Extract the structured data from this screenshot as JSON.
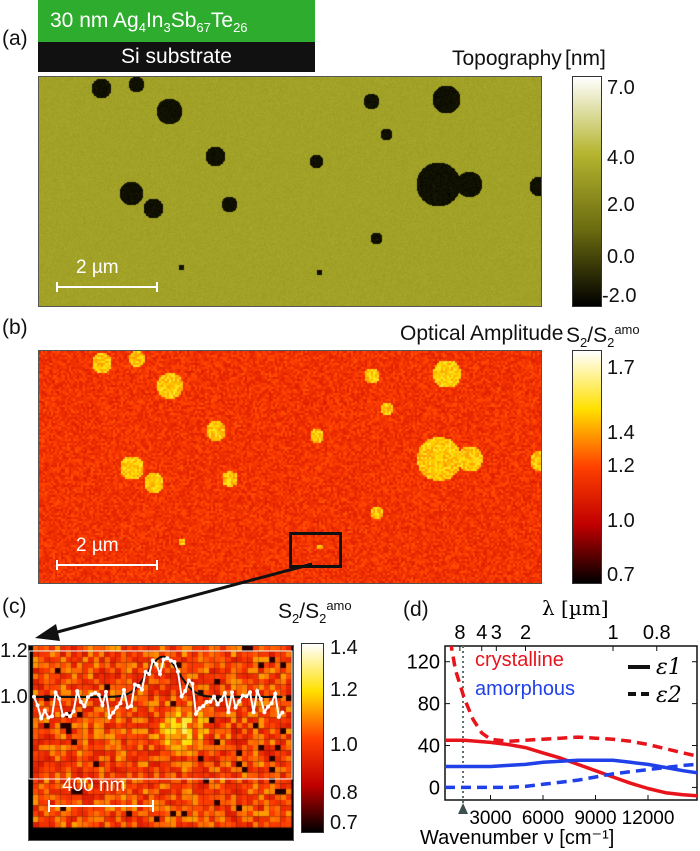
{
  "header": {
    "film_layer": {
      "prefix": "30 nm Ag",
      "s1": "4",
      "e2": "In",
      "s2": "3",
      "e3": "Sb",
      "s3": "67",
      "e4": "Te",
      "s4": "26",
      "color": "#2eac2e"
    },
    "substrate_layer": {
      "label": "Si substrate",
      "color": "#111111"
    }
  },
  "panel_a": {
    "label": "(a)",
    "title": "Topography",
    "unit": "[nm]",
    "scale_bar": "2 µm",
    "colorbar_ticks": [
      "7.0",
      "4.0",
      "2.0",
      "0.0",
      "-2.0"
    ],
    "colormap": [
      "#000000",
      "#6b6b10",
      "#b5b530",
      "#ffffff"
    ]
  },
  "panel_b": {
    "label": "(b)",
    "title": "Optical Amplitude",
    "unit_main": "S",
    "unit_sub": "2",
    "unit_slash": "/S",
    "unit_sub2": "2",
    "unit_sup": "amo",
    "scale_bar": "2 µm",
    "colorbar_ticks": [
      "1.7",
      "1.4",
      "1.2",
      "1.0",
      "0.7"
    ],
    "colormap": [
      "#000000",
      "#c00000",
      "#ff4000",
      "#ffe000",
      "#ffffff"
    ]
  },
  "panel_c": {
    "label": "(c)",
    "unit_main": "S",
    "unit_sub": "2",
    "unit_slash": "/S",
    "unit_sub2": "2",
    "unit_sup": "amo",
    "scale_bar": "400 nm",
    "profile_ticks": [
      "1.2",
      "1.0"
    ],
    "colorbar_ticks": [
      "1.4",
      "1.2",
      "1.0",
      "0.8",
      "0.7"
    ]
  },
  "chart_data": {
    "type": "line",
    "panel_label": "(d)",
    "xlabel": "Wavenumber ν [cm⁻¹]",
    "top_axis_label": "λ [µm]",
    "top_axis_ticks": [
      {
        "label": "8",
        "wavenumber": 1250
      },
      {
        "label": "4",
        "wavenumber": 2500
      },
      {
        "label": "3",
        "wavenumber": 3333
      },
      {
        "label": "2",
        "wavenumber": 5000
      },
      {
        "label": "1",
        "wavenumber": 10000
      },
      {
        "label": "0.8",
        "wavenumber": 12500
      }
    ],
    "xlim": [
      400,
      14800
    ],
    "ylim": [
      -12,
      135
    ],
    "xticks": [
      "3000",
      "6000",
      "9000",
      "12000"
    ],
    "yticks": [
      "0",
      "40",
      "80",
      "120"
    ],
    "marker_wavenumber": 1430,
    "legend": {
      "materials": [
        {
          "name": "crystalline",
          "color": "#e8141c"
        },
        {
          "name": "amorphous",
          "color": "#2040e8"
        }
      ],
      "styles": [
        {
          "name": "ε1",
          "dash": "solid"
        },
        {
          "name": "ε2",
          "dash": "dashed"
        }
      ]
    },
    "series": [
      {
        "material": "crystalline",
        "component": "ε1",
        "color": "#e8141c",
        "dash": "solid",
        "x": [
          400,
          1500,
          3000,
          4000,
          5000,
          6000,
          7000,
          8000,
          9000,
          10000,
          11000,
          12000,
          13000,
          14000,
          14800
        ],
        "y": [
          45,
          45,
          43,
          41,
          38,
          33,
          28,
          22,
          16,
          10,
          4,
          -1,
          -5,
          -7,
          -8
        ]
      },
      {
        "material": "crystalline",
        "component": "ε2",
        "color": "#e8141c",
        "dash": "dashed",
        "x": [
          700,
          1000,
          1500,
          2000,
          2500,
          3000,
          4000,
          5000,
          6000,
          7000,
          8000,
          9000,
          10000,
          11000,
          12000,
          13000,
          14000,
          14800
        ],
        "y": [
          140,
          112,
          85,
          65,
          52,
          46,
          44,
          45,
          46,
          47,
          48,
          47,
          46,
          44,
          41,
          37,
          33,
          30
        ]
      },
      {
        "material": "amorphous",
        "component": "ε1",
        "color": "#2040e8",
        "dash": "solid",
        "x": [
          400,
          2000,
          3000,
          4000,
          5000,
          6000,
          7000,
          8000,
          9000,
          10000,
          11000,
          12000,
          13000,
          14000,
          14800
        ],
        "y": [
          20,
          20,
          20,
          21,
          22,
          24,
          25,
          26,
          26,
          26,
          24,
          22,
          19,
          16,
          14
        ]
      },
      {
        "material": "amorphous",
        "component": "ε2",
        "color": "#2040e8",
        "dash": "dashed",
        "x": [
          400,
          2000,
          4000,
          5000,
          6000,
          7000,
          8000,
          9000,
          10000,
          11000,
          12000,
          13000,
          14000,
          14800
        ],
        "y": [
          0,
          0,
          0,
          1,
          3,
          5,
          7,
          10,
          13,
          15,
          17,
          19,
          21,
          22
        ]
      }
    ]
  }
}
